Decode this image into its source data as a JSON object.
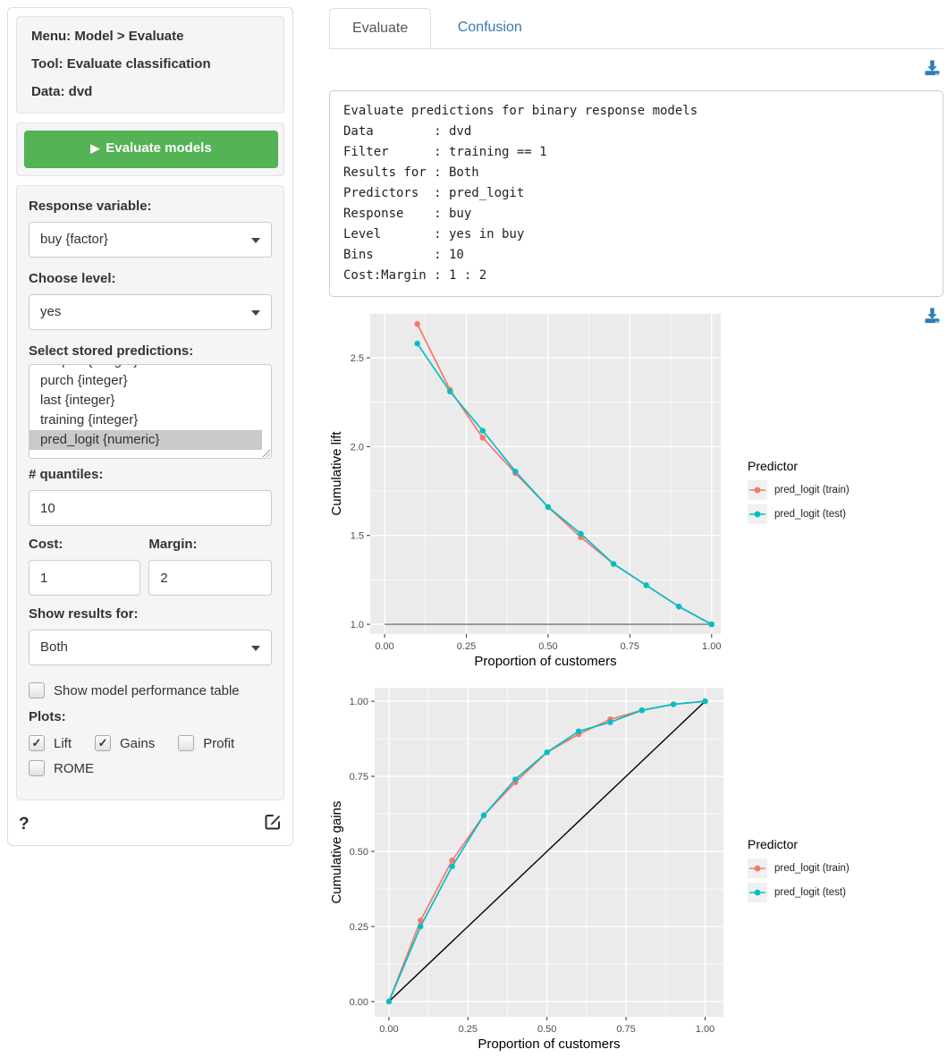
{
  "sidebar": {
    "summary": {
      "menu": "Menu: Model > Evaluate",
      "tool": "Tool: Evaluate classification",
      "data": "Data: dvd"
    },
    "run_button": {
      "label": "Evaluate models",
      "play_icon": "play-icon"
    },
    "form": {
      "response_label": "Response variable:",
      "response_value": "buy {factor}",
      "level_label": "Choose level:",
      "level_value": "yes",
      "predictions_label": "Select stored predictions:",
      "predictions_items": [
        {
          "label": "coupon {integer}",
          "selected": false
        },
        {
          "label": "purch {integer}",
          "selected": false
        },
        {
          "label": "last {integer}",
          "selected": false
        },
        {
          "label": "training {integer}",
          "selected": false
        },
        {
          "label": "pred_logit {numeric}",
          "selected": true
        }
      ],
      "quantiles_label": "# quantiles:",
      "quantiles_value": "10",
      "cost_label": "Cost:",
      "cost_value": "1",
      "margin_label": "Margin:",
      "margin_value": "2",
      "results_label": "Show results for:",
      "results_value": "Both",
      "perf_table_label": "Show model performance table",
      "perf_table_checked": false,
      "plots_label": "Plots:",
      "plot_options": [
        {
          "label": "Lift",
          "checked": true
        },
        {
          "label": "Gains",
          "checked": true
        },
        {
          "label": "Profit",
          "checked": false
        },
        {
          "label": "ROME",
          "checked": false
        }
      ]
    },
    "help_label": "?"
  },
  "tabs": [
    {
      "label": "Evaluate",
      "active": true
    },
    {
      "label": "Confusion",
      "active": false
    }
  ],
  "output": {
    "text": "Evaluate predictions for binary response models\nData        : dvd\nFilter      : training == 1\nResults for : Both\nPredictors  : pred_logit\nResponse    : buy\nLevel       : yes in buy\nBins        : 10\nCost:Margin : 1 : 2"
  },
  "colors": {
    "accent_green": "#54b355",
    "link_blue": "#337ab7",
    "download_blue": "#2e7cb7",
    "panel_bg": "#EBEBEB",
    "grid": "#FFFFFF",
    "train": "#F8766D",
    "test": "#00BFC4",
    "selected_item_bg": "#c9c9c9"
  },
  "chart_data": [
    {
      "type": "line",
      "name": "cumulative-lift",
      "xlabel": "Proportion of customers",
      "ylabel": "Cumulative lift",
      "legend_title": "Predictor",
      "legend_position": "right",
      "grid": true,
      "x": [
        0.1,
        0.2,
        0.3,
        0.4,
        0.5,
        0.6,
        0.7,
        0.8,
        0.9,
        1.0
      ],
      "series": [
        {
          "name": "pred_logit (train)",
          "color": "#F8766D",
          "values": [
            2.69,
            2.32,
            2.05,
            1.85,
            1.66,
            1.49,
            1.34,
            1.22,
            1.1,
            1.0
          ]
        },
        {
          "name": "pred_logit (test)",
          "color": "#00BFC4",
          "values": [
            2.58,
            2.31,
            2.09,
            1.86,
            1.66,
            1.51,
            1.34,
            1.22,
            1.1,
            1.0
          ]
        }
      ],
      "refline": {
        "type": "hline",
        "y": 1.0,
        "x0": 0.0,
        "x1": 1.0,
        "color": "#777777"
      },
      "xticks": [
        0.0,
        0.25,
        0.5,
        0.75,
        1.0
      ],
      "yticks": [
        1.0,
        1.5,
        2.0,
        2.5
      ],
      "xminor": [
        0.125,
        0.375,
        0.625,
        0.875
      ],
      "yminor": [
        1.25,
        1.75,
        2.25,
        2.75
      ],
      "xlim": [
        -0.044,
        1.028
      ],
      "ylim": [
        0.945,
        2.752
      ],
      "xfmt": 2,
      "yfmt": 1
    },
    {
      "type": "line",
      "name": "cumulative-gains",
      "xlabel": "Proportion of customers",
      "ylabel": "Cumulative gains",
      "legend_title": "Predictor",
      "legend_position": "right",
      "grid": true,
      "x": [
        0.0,
        0.1,
        0.2,
        0.3,
        0.4,
        0.5,
        0.6,
        0.7,
        0.8,
        0.9,
        1.0
      ],
      "series": [
        {
          "name": "pred_logit (train)",
          "color": "#F8766D",
          "values": [
            0.0,
            0.27,
            0.47,
            0.62,
            0.73,
            0.83,
            0.89,
            0.94,
            0.97,
            0.99,
            1.0
          ]
        },
        {
          "name": "pred_logit (test)",
          "color": "#00BFC4",
          "values": [
            0.0,
            0.25,
            0.45,
            0.62,
            0.74,
            0.83,
            0.9,
            0.93,
            0.97,
            0.99,
            1.0
          ]
        }
      ],
      "refline": {
        "type": "abline",
        "color": "#000000"
      },
      "xticks": [
        0.0,
        0.25,
        0.5,
        0.75,
        1.0
      ],
      "yticks": [
        0.0,
        0.25,
        0.5,
        0.75,
        1.0
      ],
      "xminor": [
        0.125,
        0.375,
        0.625,
        0.875
      ],
      "yminor": [
        0.125,
        0.375,
        0.625,
        0.875
      ],
      "xlim": [
        -0.045,
        1.058
      ],
      "ylim": [
        -0.051,
        1.045
      ],
      "xfmt": 2,
      "yfmt": 2
    }
  ]
}
